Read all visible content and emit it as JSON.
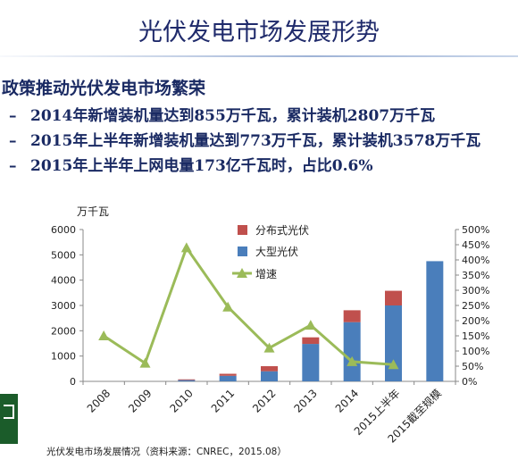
{
  "slide": {
    "title": "光伏发电市场发展形势",
    "heading": "政策推动光伏发电市场繁荣",
    "bullets": [
      "2014年新增装机量达到855万千瓦，累计装机2807万千瓦",
      "2015年上半年新增装机量达到773万千瓦，累计装机3578万千瓦",
      "2015年上半年上网电量173亿千瓦时，占比0.6%"
    ],
    "bullet_marker": "–",
    "source": "光伏发电市场发展情况（资料来源：CNREC，2015.08）"
  },
  "chart_data": {
    "type": "bar",
    "stacked": true,
    "categories": [
      "2008",
      "2009",
      "2010",
      "2011",
      "2012",
      "2013",
      "2014",
      "2015上半年",
      "2015截至规模"
    ],
    "ylabel": "万千瓦",
    "ylim": [
      0,
      6000
    ],
    "yticks": [
      "0",
      "1000",
      "2000",
      "3000",
      "4000",
      "5000",
      "6000"
    ],
    "y2lim": [
      0,
      500
    ],
    "y2ticks": [
      "0%",
      "50%",
      "100%",
      "150%",
      "200%",
      "250%",
      "300%",
      "350%",
      "400%",
      "450%",
      "500%"
    ],
    "series": [
      {
        "name": "大型光伏",
        "color": "#4a7ebb",
        "values": [
          0,
          0,
          50,
          220,
          400,
          1480,
          2340,
          3000,
          4750
        ]
      },
      {
        "name": "分布式光伏",
        "color": "#c0504d",
        "values": [
          0,
          0,
          30,
          80,
          200,
          260,
          470,
          580,
          0
        ]
      }
    ],
    "line": {
      "name": "增速",
      "color": "#9bbb59",
      "values": [
        150,
        60,
        440,
        245,
        110,
        185,
        65,
        55,
        null
      ]
    },
    "legend_position": "top-center"
  }
}
